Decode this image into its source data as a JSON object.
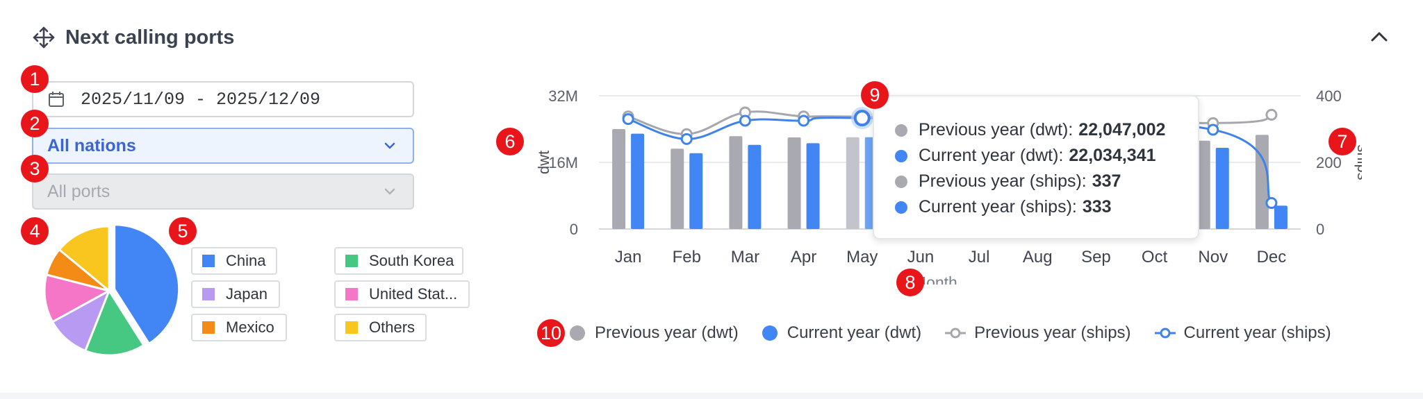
{
  "header": {
    "title": "Next calling ports",
    "move_icon": "move-arrows-icon",
    "collapse_icon": "chevron-up-icon"
  },
  "filters": {
    "date_range": "2025/11/09 - 2025/12/09",
    "nation_select": "All nations",
    "ports_select": "All ports"
  },
  "markers": [
    "1",
    "2",
    "3",
    "4",
    "5",
    "6",
    "7",
    "8",
    "9",
    "10"
  ],
  "pie_legend": [
    {
      "label": "China",
      "color": "#4285f4"
    },
    {
      "label": "South Korea",
      "color": "#47c882"
    },
    {
      "label": "Japan",
      "color": "#b99af3"
    },
    {
      "label": "United Stat...",
      "color": "#f576c7"
    },
    {
      "label": "Mexico",
      "color": "#f48b16"
    },
    {
      "label": "Others",
      "color": "#f9c51f"
    }
  ],
  "colors": {
    "previous": "#a9a9b1",
    "current": "#4285f4",
    "prev_line": "#a6a6ae",
    "curr_line": "#3f82ea"
  },
  "tooltip": {
    "rows": [
      {
        "label": "Previous year (dwt):",
        "value": "22,047,002",
        "color": "#a9a9b1"
      },
      {
        "label": "Current year (dwt):",
        "value": "22,034,341",
        "color": "#4285f4"
      },
      {
        "label": "Previous year (ships):",
        "value": "337",
        "color": "#a9a9b1"
      },
      {
        "label": "Current year (ships):",
        "value": "333",
        "color": "#4285f4"
      }
    ]
  },
  "chart_data": [
    {
      "type": "pie",
      "categories": [
        "China",
        "South Korea",
        "Japan",
        "United Stat...",
        "Mexico",
        "Others"
      ],
      "values": [
        41,
        15,
        11,
        12,
        7,
        14
      ],
      "highlighted": "China"
    },
    {
      "type": "bar",
      "categories": [
        "Jan",
        "Feb",
        "Mar",
        "Apr",
        "May",
        "Jun",
        "Jul",
        "Aug",
        "Sep",
        "Oct",
        "Nov",
        "Dec"
      ],
      "xlabel": "Month",
      "ylabel": "dwt",
      "y2label": "ships",
      "ylim": [
        0,
        32000000
      ],
      "y_ticks": [
        "0",
        "16M",
        "32M"
      ],
      "y_tick_values": [
        0,
        16000000,
        32000000
      ],
      "y2lim": [
        0,
        400
      ],
      "y2_ticks": [
        "0",
        "200",
        "400"
      ],
      "y2_tick_values": [
        0,
        200,
        400
      ],
      "grid": true,
      "legend_position": "bottom",
      "series": [
        {
          "name": "Previous year (dwt)",
          "type": "bar",
          "axis": "left",
          "values": [
            24000000,
            19300000,
            22300000,
            22000000,
            22047002,
            null,
            null,
            null,
            null,
            null,
            21200000,
            22600000
          ]
        },
        {
          "name": "Current year (dwt)",
          "type": "bar",
          "axis": "left",
          "values": [
            22900000,
            18200000,
            20200000,
            20600000,
            22034341,
            null,
            null,
            null,
            null,
            null,
            19500000,
            5600000
          ]
        },
        {
          "name": "Previous year (ships)",
          "type": "line",
          "axis": "right",
          "values": [
            338,
            285,
            350,
            338,
            337,
            null,
            null,
            null,
            null,
            null,
            318,
            343
          ]
        },
        {
          "name": "Current year (ships)",
          "type": "line",
          "axis": "right",
          "values": [
            330,
            270,
            325,
            325,
            333,
            null,
            null,
            null,
            null,
            null,
            298,
            78
          ]
        }
      ],
      "hovered": "May"
    }
  ],
  "bottom_legend": [
    {
      "label": "Previous year (dwt)",
      "style": "dot",
      "color": "#a9a9b1"
    },
    {
      "label": "Current year (dwt)",
      "style": "dot",
      "color": "#4285f4"
    },
    {
      "label": "Previous year (ships)",
      "style": "line",
      "color": "#a6a6ae"
    },
    {
      "label": "Current year (ships)",
      "style": "line",
      "color": "#3f82ea"
    }
  ]
}
